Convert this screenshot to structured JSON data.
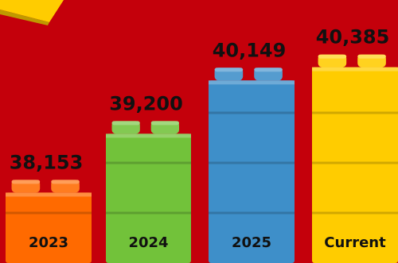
{
  "chart_data": {
    "type": "bar",
    "title": "",
    "xlabel": "",
    "ylabel": "",
    "categories": [
      "2023",
      "2024",
      "2025",
      "Current"
    ],
    "values": [
      38153,
      39200,
      40149,
      40385
    ],
    "value_labels": [
      "38,153",
      "39,200",
      "40,149",
      "40,385"
    ],
    "ylim": [
      36900,
      40450
    ],
    "grid": false,
    "legend": "none",
    "colors": [
      "#ff6a00",
      "#72c23a",
      "#3e8fc9",
      "#ffcc00"
    ]
  },
  "decor": {
    "corner_block_color": "#ffcc00",
    "background_color": "#c4000b"
  }
}
